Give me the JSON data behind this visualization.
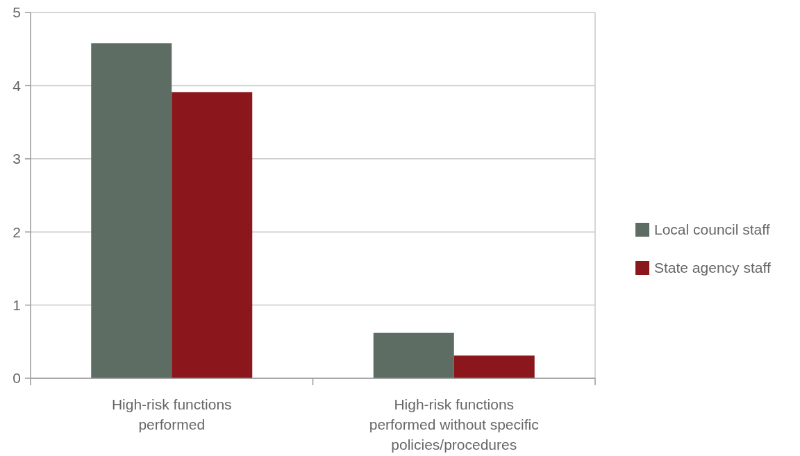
{
  "chart_data": {
    "type": "bar",
    "categories": [
      "High-risk functions performed",
      "High-risk functions performed without specific policies/procedures"
    ],
    "series": [
      {
        "name": "Local council staff",
        "color": "#5e6d64",
        "values": [
          4.58,
          0.62
        ]
      },
      {
        "name": "State agency staff",
        "color": "#8b161b",
        "values": [
          3.91,
          0.31
        ]
      }
    ],
    "ylim": [
      0,
      5
    ],
    "yticks": [
      0,
      1,
      2,
      3,
      4,
      5
    ],
    "grid": "y",
    "legend": "right"
  }
}
